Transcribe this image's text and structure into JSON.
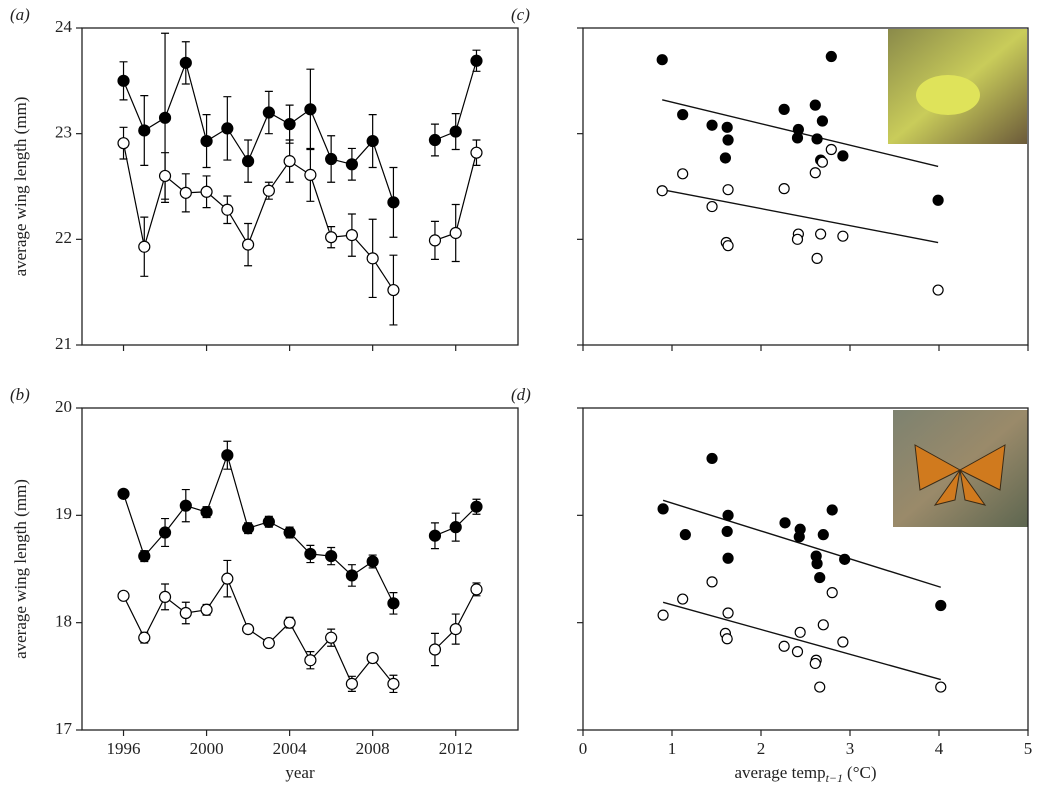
{
  "chart_data": [
    {
      "type": "line",
      "label": "(a)",
      "ylabel": "average wing length (mm)",
      "x": [
        1996,
        1997,
        1998,
        1999,
        2000,
        2001,
        2002,
        2003,
        2004,
        2005,
        2006,
        2007,
        2008,
        2009,
        2010,
        2011,
        2012,
        2013
      ],
      "xlim": [
        1994,
        2015
      ],
      "xticks": [
        1996,
        2000,
        2004,
        2008,
        2012
      ],
      "show_xtick_labels": false,
      "ylim": [
        21,
        24
      ],
      "yticks": [
        21,
        22,
        23,
        24
      ],
      "series": [
        {
          "marker_fill": "#000000",
          "color": "#000000",
          "values": [
            23.5,
            23.03,
            23.15,
            23.67,
            22.93,
            23.05,
            22.74,
            23.2,
            23.09,
            23.23,
            22.76,
            22.71,
            22.93,
            22.35,
            null,
            22.94,
            23.02,
            23.69
          ],
          "errors": [
            0.18,
            0.33,
            0.8,
            0.2,
            0.25,
            0.3,
            0.2,
            0.2,
            0.18,
            0.38,
            0.22,
            0.15,
            0.25,
            0.33,
            null,
            0.15,
            0.17,
            0.1
          ]
        },
        {
          "marker_fill": "#ffffff",
          "color": "#000000",
          "values": [
            22.91,
            21.93,
            22.6,
            22.44,
            22.45,
            22.28,
            21.95,
            22.46,
            22.74,
            22.61,
            22.02,
            22.04,
            21.82,
            21.52,
            null,
            21.99,
            22.06,
            22.82
          ],
          "errors": [
            0.15,
            0.28,
            0.22,
            0.18,
            0.15,
            0.13,
            0.2,
            0.08,
            0.2,
            0.25,
            0.1,
            0.2,
            0.37,
            0.33,
            null,
            0.18,
            0.27,
            0.12
          ]
        }
      ]
    },
    {
      "type": "line",
      "label": "(b)",
      "ylabel": "average wing length (mm)",
      "xlabel": "year",
      "x": [
        1996,
        1997,
        1998,
        1999,
        2000,
        2001,
        2002,
        2003,
        2004,
        2005,
        2006,
        2007,
        2008,
        2009,
        2010,
        2011,
        2012,
        2013
      ],
      "xlim": [
        1994,
        2015
      ],
      "xticks": [
        1996,
        2000,
        2004,
        2008,
        2012
      ],
      "ylim": [
        17,
        20
      ],
      "yticks": [
        17,
        18,
        19,
        20
      ],
      "series": [
        {
          "marker_fill": "#000000",
          "color": "#000000",
          "values": [
            19.2,
            18.62,
            18.84,
            19.09,
            19.03,
            19.56,
            18.88,
            18.94,
            18.84,
            18.64,
            18.62,
            18.44,
            18.57,
            18.18,
            null,
            18.81,
            18.89,
            19.08
          ],
          "errors": [
            0.03,
            0.05,
            0.13,
            0.15,
            0.05,
            0.13,
            0.05,
            0.05,
            0.05,
            0.08,
            0.08,
            0.1,
            0.06,
            0.1,
            null,
            0.12,
            0.13,
            0.07
          ]
        },
        {
          "marker_fill": "#ffffff",
          "color": "#000000",
          "values": [
            18.25,
            17.86,
            18.24,
            18.09,
            18.12,
            18.41,
            17.94,
            17.81,
            18.0,
            17.65,
            17.86,
            17.43,
            17.67,
            17.43,
            null,
            17.75,
            17.94,
            18.31
          ],
          "errors": [
            0.03,
            0.05,
            0.12,
            0.1,
            0.05,
            0.17,
            0.03,
            0.03,
            0.05,
            0.08,
            0.08,
            0.07,
            0.04,
            0.08,
            null,
            0.15,
            0.14,
            0.06
          ]
        }
      ]
    },
    {
      "type": "scatter",
      "label": "(c)",
      "xlim": [
        0,
        5
      ],
      "xticks": [
        0,
        1,
        2,
        3,
        4,
        5
      ],
      "show_xtick_labels": false,
      "ylim": [
        21,
        24
      ],
      "yticks": [
        21,
        22,
        23,
        24
      ],
      "show_ytick_labels": false,
      "series": [
        {
          "marker_fill": "#000000",
          "color": "#000000",
          "x": [
            0.89,
            1.12,
            1.45,
            1.62,
            1.63,
            1.6,
            2.26,
            2.42,
            2.41,
            2.61,
            2.69,
            2.63,
            2.67,
            2.79,
            2.92,
            3.99
          ],
          "values": [
            23.7,
            23.18,
            23.08,
            23.06,
            22.94,
            22.77,
            23.23,
            23.04,
            22.96,
            23.27,
            23.12,
            22.95,
            22.75,
            23.73,
            22.79,
            22.37
          ],
          "fit": {
            "x": [
              0.89,
              3.99
            ],
            "y": [
              23.32,
              22.69
            ]
          }
        },
        {
          "marker_fill": "#ffffff",
          "color": "#000000",
          "x": [
            0.89,
            1.12,
            1.45,
            1.63,
            1.61,
            1.63,
            2.26,
            2.42,
            2.41,
            2.61,
            2.69,
            2.79,
            2.67,
            2.63,
            2.92,
            3.99
          ],
          "values": [
            22.46,
            22.62,
            22.31,
            22.47,
            21.97,
            21.94,
            22.48,
            22.05,
            22.0,
            22.63,
            22.73,
            22.85,
            22.05,
            21.82,
            22.03,
            21.52
          ],
          "fit": {
            "x": [
              0.89,
              3.99
            ],
            "y": [
              22.47,
              21.97
            ]
          }
        }
      ]
    },
    {
      "type": "scatter",
      "label": "(d)",
      "xlabel": [
        "average temp",
        "t−1",
        "(°C)"
      ],
      "xlim": [
        0,
        5
      ],
      "xticks": [
        0,
        1,
        2,
        3,
        4,
        5
      ],
      "ylim": [
        17,
        20
      ],
      "yticks": [
        17,
        18,
        19,
        20
      ],
      "show_ytick_labels": false,
      "series": [
        {
          "marker_fill": "#000000",
          "color": "#000000",
          "x": [
            1.45,
            0.9,
            1.63,
            1.15,
            1.62,
            1.63,
            2.27,
            2.44,
            2.43,
            2.7,
            2.8,
            2.62,
            2.63,
            2.66,
            2.94,
            4.02
          ],
          "values": [
            19.53,
            19.06,
            19.0,
            18.82,
            18.85,
            18.6,
            18.93,
            18.87,
            18.8,
            18.82,
            19.05,
            18.62,
            18.55,
            18.42,
            18.59,
            18.16
          ],
          "fit": {
            "x": [
              0.9,
              4.02
            ],
            "y": [
              19.14,
              18.33
            ]
          }
        },
        {
          "marker_fill": "#ffffff",
          "color": "#000000",
          "x": [
            0.9,
            1.12,
            1.45,
            1.63,
            1.6,
            1.62,
            2.26,
            2.41,
            2.44,
            2.62,
            2.61,
            2.66,
            2.7,
            2.8,
            2.92,
            4.02
          ],
          "values": [
            18.07,
            18.22,
            18.38,
            18.09,
            17.9,
            17.85,
            17.78,
            17.73,
            17.91,
            17.65,
            17.62,
            17.4,
            17.98,
            18.28,
            17.82,
            17.4
          ],
          "fit": {
            "x": [
              0.9,
              4.02
            ],
            "y": [
              18.19,
              17.47
            ]
          }
        }
      ]
    }
  ]
}
